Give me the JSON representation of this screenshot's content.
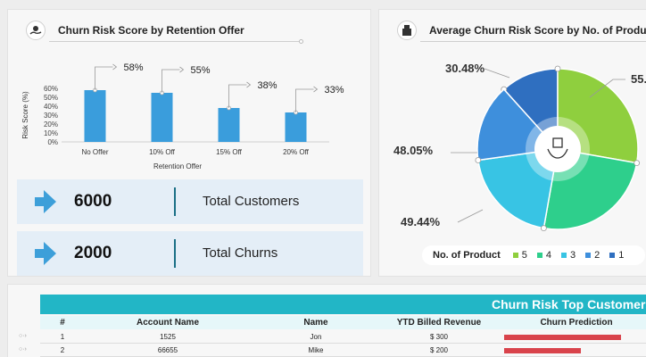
{
  "left_panel": {
    "title": "Churn Risk Score by Retention Offer",
    "icon": "coin-hand-icon",
    "chart_data": {
      "type": "bar",
      "title": "",
      "xlabel": "Retention Offer",
      "ylabel": "Risk Score (%)",
      "categories": [
        "No Offer",
        "10% Off",
        "15% Off",
        "20% Off"
      ],
      "values": [
        58,
        55,
        38,
        33
      ],
      "data_labels": [
        "58%",
        "55%",
        "38%",
        "33%"
      ],
      "ylim": [
        0,
        60
      ],
      "yticks": [
        "0%",
        "10%",
        "20%",
        "30%",
        "40%",
        "50%",
        "60%"
      ],
      "bar_color": "#3a9ddc",
      "grid": false
    },
    "kpis": [
      {
        "value": "6000",
        "label": "Total Customers"
      },
      {
        "value": "2000",
        "label": "Total Churns"
      }
    ]
  },
  "right_panel": {
    "title": "Average Churn Risk Score by No. of Product",
    "icon": "boxes-icon",
    "center_icon": "hands-box-icon",
    "chart_data": {
      "type": "pie",
      "title": "",
      "legend_title": "No. of Product",
      "legend_placement": "bottom",
      "series": [
        {
          "name": "1",
          "color": "#2f6fc0",
          "label": "30.48%"
        },
        {
          "name": "5",
          "color": "#8fcf3e",
          "label": "55."
        },
        {
          "name": "4",
          "color": "#2ecf8c",
          "label": ""
        },
        {
          "name": "3",
          "color": "#38c4e4",
          "label": "49.44%"
        },
        {
          "name": "2",
          "color": "#3e8fdc",
          "label": "48.05%"
        }
      ],
      "legend_order": [
        "5",
        "4",
        "3",
        "2",
        "1"
      ]
    }
  },
  "table": {
    "title": "Churn Risk Top Customers",
    "columns": [
      "#",
      "Account Name",
      "Name",
      "YTD Billed Revenue",
      "Churn Prediction"
    ],
    "rows": [
      {
        "num": "1",
        "account": "1525",
        "name": "Jon",
        "revenue": "$ 300",
        "prediction": 0.95
      },
      {
        "num": "2",
        "account": "66655",
        "name": "Mike",
        "revenue": "$ 200",
        "prediction": 0.62
      }
    ],
    "bar_color": "#d9434b"
  }
}
